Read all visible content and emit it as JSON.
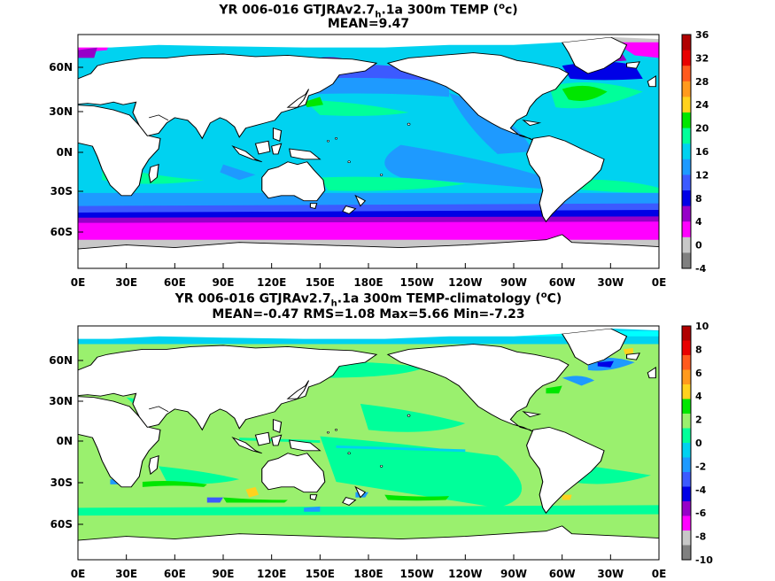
{
  "panels": [
    {
      "id": "top",
      "title_pre": "YR 006-016 GTJRAv2.7",
      "title_sub": "h",
      "title_mid": ".1a 300m TEMP (",
      "title_sup": "o",
      "title_post": "c)",
      "stats": "MEAN=9.47",
      "lat_labels": [
        "60N",
        "30N",
        "0N",
        "30S",
        "60S"
      ],
      "lon_labels": [
        "0E",
        "30E",
        "60E",
        "90E",
        "120E",
        "150E",
        "180E",
        "150W",
        "120W",
        "90W",
        "60W",
        "30W",
        "0E"
      ],
      "colorbar_labels": [
        "36",
        "32",
        "28",
        "24",
        "20",
        "16",
        "12",
        "8",
        "4",
        "0",
        "-4"
      ],
      "colorbar_colors": [
        "#b00000",
        "#e80000",
        "#ff5a1e",
        "#ff9a1e",
        "#ffd21e",
        "#00e600",
        "#00ff9a",
        "#00d2f0",
        "#1e9aff",
        "#3c5aff",
        "#0000e6",
        "#9600c8",
        "#ff00ff",
        "#c8c8c8",
        "#808080"
      ]
    },
    {
      "id": "bottom",
      "title_pre": "YR 006-016 GTJRAv2.7",
      "title_sub": "h",
      "title_mid": ".1a 300m TEMP-climatology (",
      "title_sup": "o",
      "title_post": "C)",
      "stats": "MEAN=-0.47   RMS=1.08   Max=5.66   Min=-7.23",
      "lat_labels": [
        "60N",
        "30N",
        "0N",
        "30S",
        "60S"
      ],
      "lon_labels": [
        "0E",
        "30E",
        "60E",
        "90E",
        "120E",
        "150E",
        "180E",
        "150W",
        "120W",
        "90W",
        "60W",
        "30W",
        "0E"
      ],
      "colorbar_labels": [
        "10",
        "8",
        "6",
        "4",
        "2",
        "0",
        "-2",
        "-4",
        "-6",
        "-8",
        "-10"
      ],
      "colorbar_colors": [
        "#b00000",
        "#e80000",
        "#ff5a1e",
        "#ff9a1e",
        "#ffd21e",
        "#00e600",
        "#9af06e",
        "#00ff9a",
        "#00d2f0",
        "#1e9aff",
        "#3c5aff",
        "#0000e6",
        "#9600c8",
        "#ff00ff",
        "#c8c8c8",
        "#808080"
      ]
    }
  ]
}
